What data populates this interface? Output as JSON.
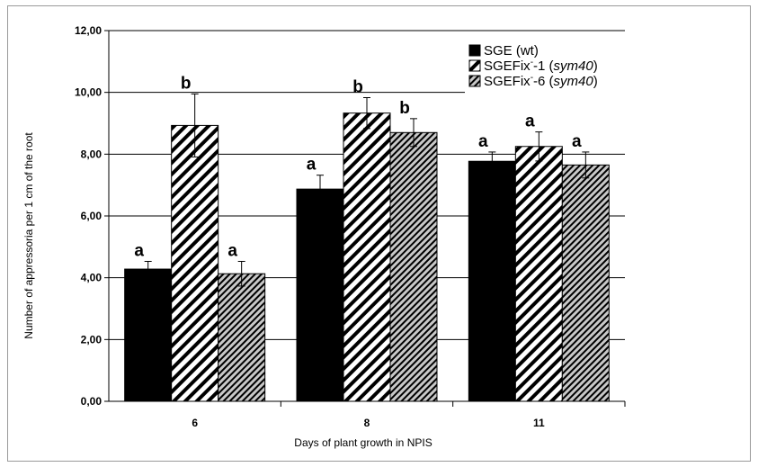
{
  "chart_data": {
    "type": "bar",
    "xlabel": "Days of plant growth in NPIS",
    "ylabel": "Number of appressoria per 1 cm of the root",
    "ylim": [
      0,
      12
    ],
    "yticks": [
      "0,00",
      "2,00",
      "4,00",
      "6,00",
      "8,00",
      "10,00",
      "12,00"
    ],
    "categories": [
      "6",
      "8",
      "11"
    ],
    "grid": "horizontal",
    "legend_position": "top-right",
    "series": [
      {
        "name": "SGE (wt)",
        "legend_main": "SGE (wt)",
        "legend_sup": "",
        "legend_suffix": "",
        "legend_italic": "",
        "legend_close": "",
        "pattern": "solid",
        "color": "#000000",
        "values": [
          4.28,
          6.87,
          7.77
        ],
        "errors": [
          0.25,
          0.45,
          0.3
        ],
        "letters": [
          "a",
          "a",
          "a"
        ]
      },
      {
        "name": "SGEFix−-1 (sym40)",
        "legend_main": "SGEFix",
        "legend_sup": "-",
        "legend_suffix": "-1 (",
        "legend_italic": "sym40",
        "legend_close": ")",
        "pattern": "hatch-wide",
        "color": "#000000",
        "values": [
          8.93,
          9.33,
          8.25
        ],
        "errors": [
          1.02,
          0.5,
          0.47
        ],
        "letters": [
          "b",
          "b",
          "a"
        ]
      },
      {
        "name": "SGEFix−-6 (sym40)",
        "legend_main": "SGEFix",
        "legend_sup": "-",
        "legend_suffix": "-6 (",
        "legend_italic": "sym40",
        "legend_close": ")",
        "pattern": "hatch-dense",
        "color": "#000000",
        "values": [
          4.13,
          8.7,
          7.65
        ],
        "errors": [
          0.4,
          0.45,
          0.42
        ],
        "letters": [
          "a",
          "b",
          "a"
        ]
      }
    ]
  }
}
